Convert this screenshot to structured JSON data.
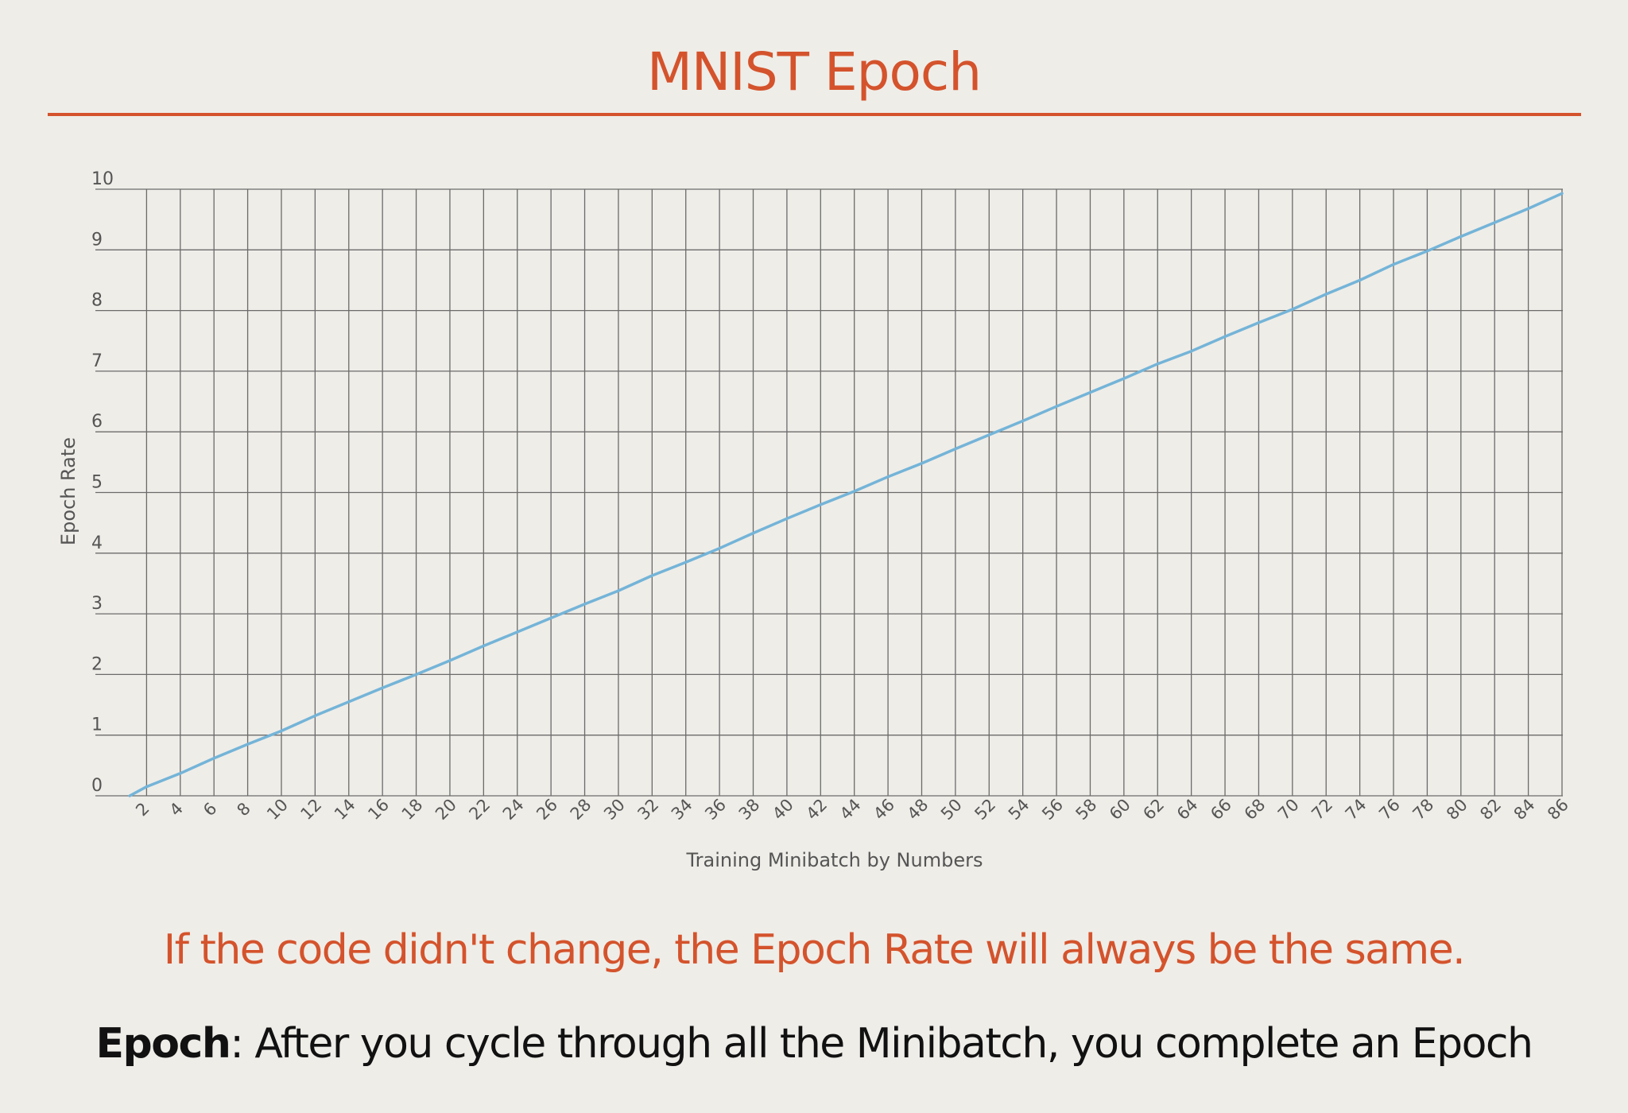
{
  "slide": {
    "title": "MNIST Epoch",
    "note": "If the code didn't change, the Epoch Rate will always be the same.",
    "definition_term": "Epoch",
    "definition_text": ": After you cycle through all the Minibatch, you complete an Epoch"
  },
  "colors": {
    "accent": "#d4532c",
    "line": "#74b4d8",
    "grid": "#6b6b6b",
    "background": "#efede8"
  },
  "chart_data": {
    "type": "line",
    "xlabel": "Training Minibatch by Numbers",
    "ylabel": "Epoch Rate",
    "xlim": [
      0,
      86
    ],
    "ylim": [
      0,
      10
    ],
    "x_ticks": [
      2,
      4,
      6,
      8,
      10,
      12,
      14,
      16,
      18,
      20,
      22,
      24,
      26,
      28,
      30,
      32,
      34,
      36,
      38,
      40,
      42,
      44,
      46,
      48,
      50,
      52,
      54,
      56,
      58,
      60,
      62,
      64,
      66,
      68,
      70,
      72,
      74,
      76,
      78,
      80,
      82,
      84,
      86
    ],
    "y_ticks": [
      0,
      1,
      2,
      3,
      4,
      5,
      6,
      7,
      8,
      9,
      10
    ],
    "grid": true,
    "series": [
      {
        "x": [
          1,
          2,
          4,
          6,
          8,
          10,
          12,
          14,
          16,
          18,
          20,
          22,
          24,
          26,
          28,
          30,
          32,
          34,
          36,
          38,
          40,
          42,
          44,
          46,
          48,
          50,
          52,
          54,
          56,
          58,
          60,
          62,
          64,
          66,
          68,
          70,
          72,
          74,
          76,
          78,
          80,
          82,
          84,
          86
        ],
        "values": [
          0,
          0.15,
          0.37,
          0.62,
          0.85,
          1.07,
          1.32,
          1.55,
          1.78,
          2.0,
          2.23,
          2.47,
          2.7,
          2.93,
          3.16,
          3.38,
          3.63,
          3.85,
          4.08,
          4.33,
          4.57,
          4.8,
          5.02,
          5.26,
          5.48,
          5.72,
          5.95,
          6.18,
          6.42,
          6.65,
          6.88,
          7.12,
          7.33,
          7.57,
          7.8,
          8.02,
          8.27,
          8.5,
          8.76,
          8.98,
          9.22,
          9.45,
          9.68,
          9.93
        ]
      }
    ]
  }
}
